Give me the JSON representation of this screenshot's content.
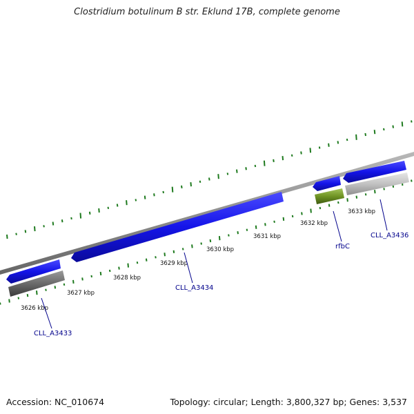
{
  "title": "Clostridium botulinum B str. Eklund 17B, complete genome",
  "footer": {
    "accession": "Accession: NC_010674",
    "summary": "Topology: circular; Length: 3,800,327 bp; Genes: 3,537"
  },
  "scale_labels": [
    "3626 kbp",
    "3627 kbp",
    "3628 kbp",
    "3629 kbp",
    "3630 kbp",
    "3631 kbp",
    "3632 kbp",
    "3633 kbp"
  ],
  "gene_labels": [
    "CLL_A3433",
    "CLL_A3434",
    "rfbC",
    "CLL_A3436"
  ],
  "colors": {
    "cds": "#1414e8",
    "gene_dark": "#6a6a6a",
    "gene_light": "#c2c2c2",
    "rfbC": "#6f9424",
    "backbone": "#8a8a8a",
    "gc_ticks": "#1e7a1e",
    "label": "#00008b"
  }
}
